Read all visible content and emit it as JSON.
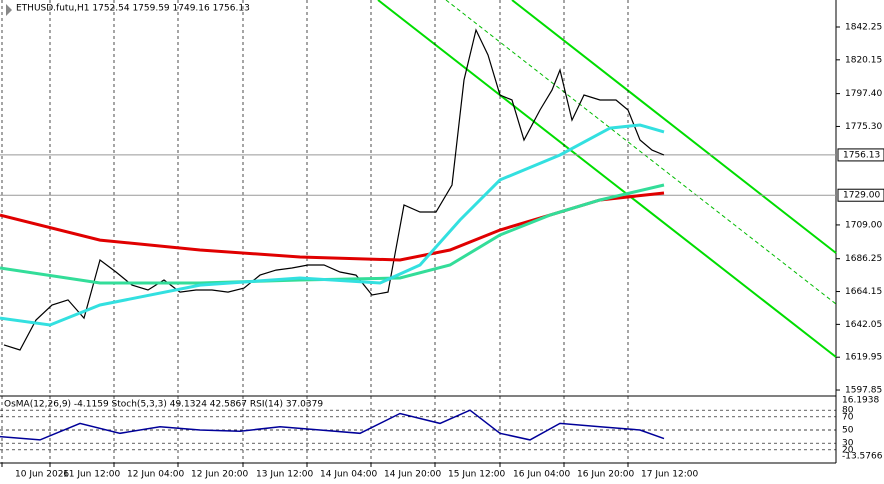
{
  "chart_data": {
    "type": "line",
    "title": "ETHUSD.futu,H1  1752.54 1759.59 1749.16 1756.13",
    "xlim": [
      0,
      209
    ],
    "ylim": [
      1594.5,
      1860.43
    ],
    "xticks": [
      {
        "value": 0.5,
        "label": "10 Jun 2026"
      },
      {
        "value": 12.5,
        "label": "11 Jun 12:00"
      },
      {
        "value": 28.5,
        "label": "12 Jun 04:00"
      },
      {
        "value": 44.5,
        "label": "12 Jun 20:00"
      },
      {
        "value": 60.75,
        "label": "13 Jun 12:00"
      },
      {
        "value": 76.75,
        "label": "14 Jun 04:00"
      },
      {
        "value": 92.75,
        "label": "14 Jun 20:00"
      },
      {
        "value": 108.75,
        "label": "15 Jun 12:00"
      },
      {
        "value": 125,
        "label": "16 Jun 04:00"
      },
      {
        "value": 141,
        "label": "16 Jun 20:00"
      },
      {
        "value": 157,
        "label": "17 Jun 12:00"
      }
    ],
    "yticks": [
      {
        "value": 1842.25,
        "label": "1842.25"
      },
      {
        "value": 1820.15,
        "label": "1820.15"
      },
      {
        "value": 1797.4,
        "label": "1797.40"
      },
      {
        "value": 1775.3,
        "label": "1775.30"
      },
      {
        "value": 1709,
        "label": "1709.00"
      },
      {
        "value": 1686.25,
        "label": "1686.25"
      },
      {
        "value": 1664.15,
        "label": "1664.15"
      },
      {
        "value": 1642.05,
        "label": "1642.05"
      },
      {
        "value": 1619.95,
        "label": "1619.95"
      },
      {
        "value": 1597.85,
        "label": "1597.85"
      }
    ],
    "levels": [
      {
        "value": 1756.13,
        "label": "1756.13",
        "color": "#999999"
      },
      {
        "value": 1729,
        "label": "1729.00",
        "color": "#999999"
      }
    ],
    "series": [
      {
        "color": "#000000",
        "x": [
          1,
          5,
          9,
          13,
          17,
          21,
          25,
          29,
          33,
          37,
          41,
          45,
          49,
          53,
          57,
          61,
          65,
          69,
          73,
          77,
          81,
          85,
          89,
          93,
          97,
          101,
          105,
          109,
          113,
          116,
          119,
          122,
          125,
          128,
          131,
          135,
          138,
          140,
          143,
          146,
          150,
          154,
          157,
          160,
          163,
          166
        ],
        "values": [
          1628.2,
          1624.8,
          1645,
          1655.1,
          1658.5,
          1646.3,
          1685.4,
          1677.3,
          1668.5,
          1665.2,
          1671.9,
          1663.8,
          1665.2,
          1665.2,
          1663.8,
          1666.5,
          1675.2,
          1678.6,
          1680,
          1682,
          1682,
          1677.3,
          1675.2,
          1661.8,
          1663.8,
          1722.4,
          1717.7,
          1717.7,
          1735.9,
          1806.6,
          1840.2,
          1823.4,
          1796.5,
          1793.1,
          1766.2,
          1786.4,
          1799.8,
          1813.3,
          1779.6,
          1796.5,
          1793.1,
          1793.1,
          1786.4,
          1766.2,
          1759.4,
          1756.1
        ]
      },
      {
        "color": "#e00000",
        "x": [
          0,
          25,
          50,
          75,
          100,
          112.5,
          125,
          137.5,
          150,
          166
        ],
        "values": [
          1715.6,
          1698.8,
          1692.1,
          1687.4,
          1685.4,
          1692.1,
          1705.6,
          1715.6,
          1725.8,
          1730.5
        ]
      },
      {
        "color": "#33dd99",
        "x": [
          0,
          25,
          50,
          75,
          100,
          112.5,
          125,
          137.5,
          150,
          166
        ],
        "values": [
          1680,
          1669.9,
          1669.9,
          1671.9,
          1673.3,
          1682,
          1702.2,
          1715.6,
          1725.8,
          1735.9
        ]
      },
      {
        "color": "#33e0e0",
        "x": [
          0,
          12.5,
          25,
          50,
          75,
          95,
          105,
          115,
          125,
          140,
          152.5,
          160,
          166
        ],
        "values": [
          1646.3,
          1641.6,
          1655.1,
          1668.5,
          1673.3,
          1669.9,
          1682,
          1712.3,
          1739.3,
          1756.1,
          1774.2,
          1776.3,
          1771.6
        ]
      }
    ],
    "indicator": {
      "label": "OsMA(12,26,9) -4.1159  Stoch(5,3,3) 49.1324 42.5867  RSI(14) 37.0379",
      "ylim": [
        0,
        100
      ],
      "scale_labels": [
        "16.1938",
        "-13.5766"
      ],
      "yticks": [
        80,
        70,
        50,
        30,
        20
      ],
      "color": "#000099",
      "x": [
        0,
        10,
        20,
        30,
        40,
        50,
        60,
        70,
        80,
        90,
        100,
        110,
        117.5,
        125,
        132.5,
        140,
        150,
        160,
        166
      ],
      "values": [
        40,
        35,
        60,
        45,
        55,
        50,
        48,
        55,
        50,
        45,
        75,
        60,
        80,
        45,
        35,
        60,
        55,
        50,
        37
      ]
    }
  }
}
